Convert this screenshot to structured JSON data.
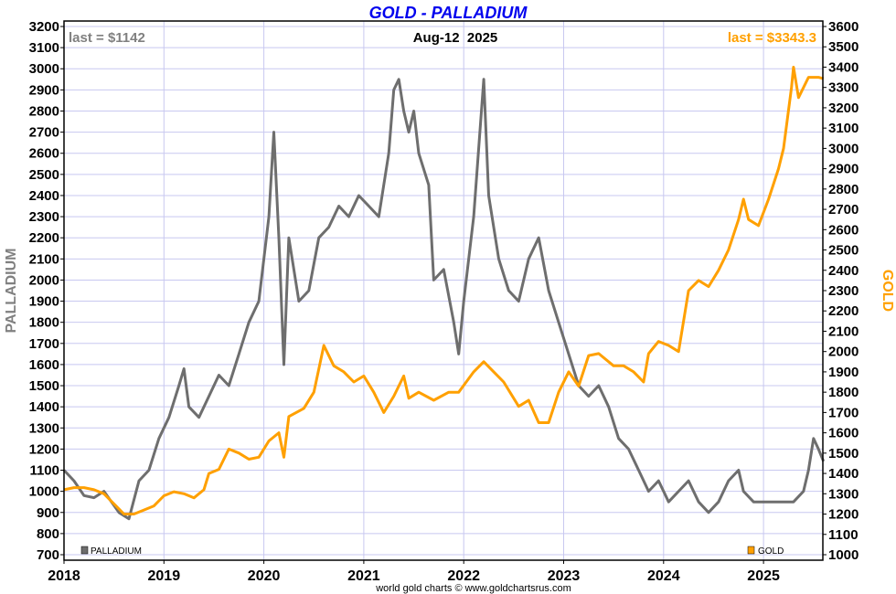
{
  "chart_data": {
    "type": "line",
    "title": "GOLD - PALLADIUM",
    "date_label": "Aug-12  2025",
    "left_last": "last = $1142",
    "right_last": "last = $3343.3",
    "ylabel_left": "PALLADIUM",
    "ylabel_right": "GOLD",
    "credit": "world gold charts © www.goldchartsrus.com",
    "xlim": [
      2018,
      2025.6
    ],
    "ylim_left": [
      700,
      3200
    ],
    "ylim_right": [
      1000,
      3600
    ],
    "x_ticks": [
      "2018",
      "2019",
      "2020",
      "2021",
      "2022",
      "2023",
      "2024",
      "2025"
    ],
    "y_ticks_left": [
      700,
      800,
      900,
      1000,
      1100,
      1200,
      1300,
      1400,
      1500,
      1600,
      1700,
      1800,
      1900,
      2000,
      2100,
      2200,
      2300,
      2400,
      2500,
      2600,
      2700,
      2800,
      2900,
      3000,
      3100,
      3200
    ],
    "y_ticks_right": [
      1000,
      1100,
      1200,
      1300,
      1400,
      1500,
      1600,
      1700,
      1800,
      1900,
      2000,
      2100,
      2200,
      2300,
      2400,
      2500,
      2600,
      2700,
      2800,
      2900,
      3000,
      3100,
      3200,
      3300,
      3400,
      3500,
      3600
    ],
    "colors": {
      "palladium": "#6e6e6e",
      "gold": "#ffa000",
      "title": "#0000ee",
      "grid": "#c8c8f0"
    },
    "series": [
      {
        "name": "PALLADIUM",
        "axis": "left",
        "x": [
          2018.0,
          2018.1,
          2018.2,
          2018.3,
          2018.4,
          2018.55,
          2018.65,
          2018.75,
          2018.85,
          2018.95,
          2019.05,
          2019.15,
          2019.2,
          2019.25,
          2019.35,
          2019.45,
          2019.55,
          2019.65,
          2019.75,
          2019.85,
          2019.95,
          2020.05,
          2020.1,
          2020.15,
          2020.2,
          2020.25,
          2020.35,
          2020.45,
          2020.55,
          2020.65,
          2020.75,
          2020.85,
          2020.95,
          2021.05,
          2021.15,
          2021.25,
          2021.3,
          2021.35,
          2021.4,
          2021.45,
          2021.5,
          2021.55,
          2021.65,
          2021.7,
          2021.8,
          2021.9,
          2021.95,
          2022.0,
          2022.1,
          2022.2,
          2022.25,
          2022.35,
          2022.45,
          2022.55,
          2022.65,
          2022.75,
          2022.85,
          2022.95,
          2023.05,
          2023.15,
          2023.25,
          2023.35,
          2023.45,
          2023.55,
          2023.65,
          2023.75,
          2023.85,
          2023.95,
          2024.05,
          2024.15,
          2024.25,
          2024.35,
          2024.45,
          2024.55,
          2024.65,
          2024.75,
          2024.8,
          2024.9,
          2025.0,
          2025.1,
          2025.2,
          2025.3,
          2025.4,
          2025.45,
          2025.5,
          2025.55,
          2025.6
        ],
        "values": [
          1100,
          1050,
          980,
          970,
          1000,
          900,
          870,
          1050,
          1100,
          1250,
          1350,
          1500,
          1580,
          1400,
          1350,
          1450,
          1550,
          1500,
          1650,
          1800,
          1900,
          2300,
          2700,
          2200,
          1600,
          2200,
          1900,
          1950,
          2200,
          2250,
          2350,
          2300,
          2400,
          2350,
          2300,
          2600,
          2900,
          2950,
          2800,
          2700,
          2800,
          2600,
          2450,
          2000,
          2050,
          1800,
          1650,
          1900,
          2300,
          2950,
          2400,
          2100,
          1950,
          1900,
          2100,
          2200,
          1950,
          1800,
          1650,
          1500,
          1450,
          1500,
          1400,
          1250,
          1200,
          1100,
          1000,
          1050,
          950,
          1000,
          1050,
          950,
          900,
          950,
          1050,
          1100,
          1000,
          950,
          950,
          950,
          950,
          950,
          1000,
          1100,
          1250,
          1200,
          1142
        ]
      },
      {
        "name": "GOLD",
        "axis": "right",
        "x": [
          2018.0,
          2018.1,
          2018.2,
          2018.3,
          2018.4,
          2018.5,
          2018.6,
          2018.7,
          2018.8,
          2018.9,
          2019.0,
          2019.1,
          2019.2,
          2019.3,
          2019.4,
          2019.45,
          2019.55,
          2019.65,
          2019.75,
          2019.85,
          2019.95,
          2020.05,
          2020.15,
          2020.2,
          2020.25,
          2020.4,
          2020.5,
          2020.6,
          2020.7,
          2020.8,
          2020.9,
          2021.0,
          2021.1,
          2021.2,
          2021.3,
          2021.4,
          2021.45,
          2021.55,
          2021.7,
          2021.85,
          2021.95,
          2022.1,
          2022.2,
          2022.3,
          2022.4,
          2022.55,
          2022.65,
          2022.75,
          2022.85,
          2022.95,
          2023.05,
          2023.15,
          2023.25,
          2023.35,
          2023.5,
          2023.6,
          2023.7,
          2023.8,
          2023.85,
          2023.95,
          2024.05,
          2024.15,
          2024.25,
          2024.35,
          2024.45,
          2024.55,
          2024.65,
          2024.75,
          2024.8,
          2024.85,
          2024.95,
          2025.05,
          2025.15,
          2025.2,
          2025.28,
          2025.3,
          2025.35,
          2025.45,
          2025.55,
          2025.6
        ],
        "values": [
          1320,
          1330,
          1330,
          1320,
          1300,
          1250,
          1200,
          1200,
          1220,
          1240,
          1290,
          1310,
          1300,
          1280,
          1320,
          1400,
          1420,
          1520,
          1500,
          1470,
          1480,
          1560,
          1600,
          1480,
          1680,
          1720,
          1800,
          2030,
          1930,
          1900,
          1850,
          1880,
          1800,
          1700,
          1780,
          1880,
          1770,
          1800,
          1760,
          1800,
          1800,
          1900,
          1950,
          1900,
          1850,
          1730,
          1760,
          1650,
          1650,
          1800,
          1900,
          1830,
          1980,
          1990,
          1930,
          1930,
          1900,
          1850,
          1990,
          2050,
          2030,
          2000,
          2300,
          2350,
          2320,
          2400,
          2500,
          2650,
          2750,
          2650,
          2620,
          2750,
          2900,
          3000,
          3300,
          3400,
          3250,
          3350,
          3350,
          3343
        ]
      }
    ]
  }
}
